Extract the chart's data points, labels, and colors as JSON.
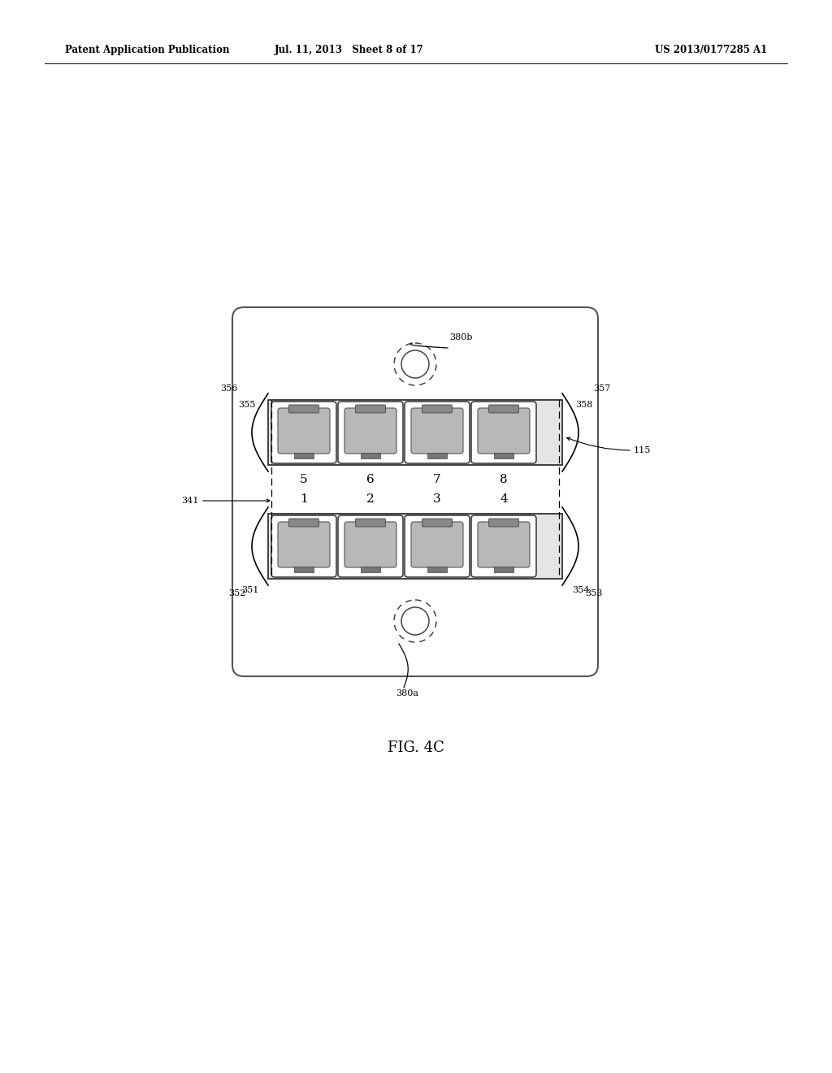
{
  "title_left": "Patent Application Publication",
  "title_mid": "Jul. 11, 2013   Sheet 8 of 17",
  "title_right": "US 2013/0177285 A1",
  "fig_label": "FIG. 4C",
  "background": "#ffffff",
  "port_labels_top": [
    "5",
    "6",
    "7",
    "8"
  ],
  "port_labels_bottom": [
    "1",
    "2",
    "3",
    "4"
  ],
  "label_356": "356",
  "label_355": "355",
  "label_357": "357",
  "label_358": "358",
  "label_115": "115",
  "label_341": "341",
  "label_351": "351",
  "label_352": "352",
  "label_353": "353",
  "label_354": "354",
  "label_380a": "380a",
  "label_380b": "380b"
}
